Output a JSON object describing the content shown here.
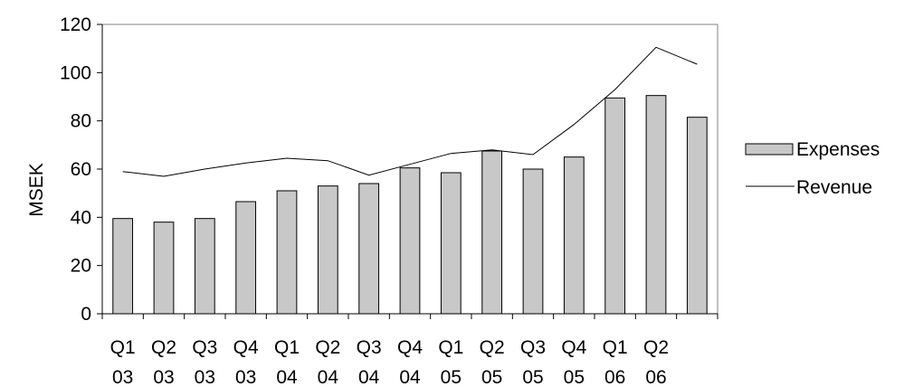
{
  "chart_data": {
    "type": "bar",
    "ylabel": "MSEK",
    "ylim": [
      0,
      120
    ],
    "yticks": [
      0,
      20,
      40,
      60,
      80,
      100,
      120
    ],
    "grid": false,
    "legend_position": "right",
    "categories": [
      [
        "Q1",
        "03"
      ],
      [
        "Q2",
        "03"
      ],
      [
        "Q3",
        "03"
      ],
      [
        "Q4",
        "03"
      ],
      [
        "Q1",
        "04"
      ],
      [
        "Q2",
        "04"
      ],
      [
        "Q3",
        "04"
      ],
      [
        "Q4",
        "04"
      ],
      [
        "Q1",
        "05"
      ],
      [
        "Q2",
        "05"
      ],
      [
        "Q3",
        "05"
      ],
      [
        "Q4",
        "05"
      ],
      [
        "Q1",
        "06"
      ],
      [
        "Q2",
        "06"
      ],
      [
        "",
        ""
      ]
    ],
    "series": [
      {
        "name": "Expenses",
        "kind": "bar",
        "color": "#c8c8c8",
        "values": [
          39.5,
          38,
          39.5,
          46.5,
          51,
          53,
          54,
          60.5,
          58.5,
          67.5,
          60,
          65,
          89.5,
          90.5,
          81.5
        ]
      },
      {
        "name": "Revenue",
        "kind": "line",
        "color": "#000000",
        "values": [
          59,
          57,
          60,
          62.5,
          64.5,
          63.5,
          57.5,
          62,
          66.5,
          68,
          66,
          78.5,
          93,
          110.5,
          103.5
        ]
      }
    ]
  }
}
